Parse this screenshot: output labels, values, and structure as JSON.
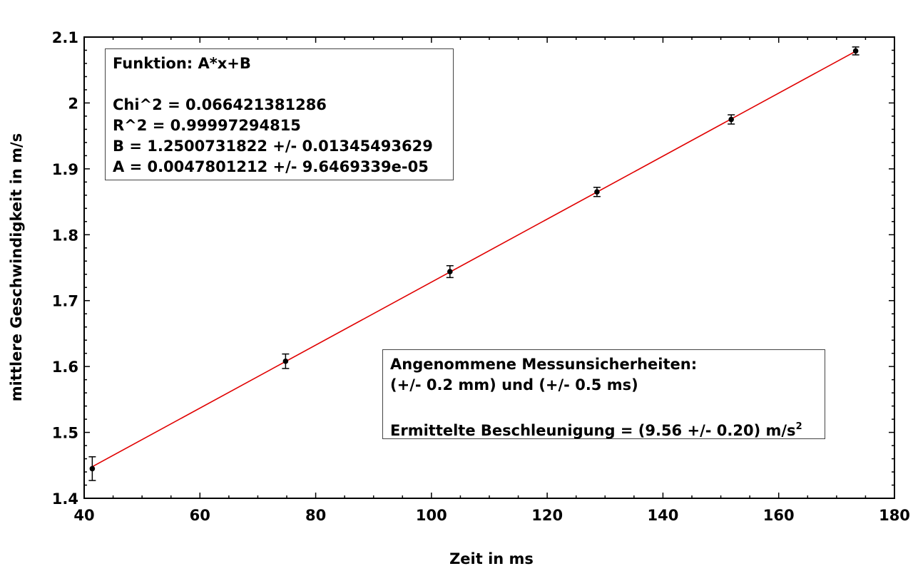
{
  "chart_data": {
    "type": "scatter",
    "xlabel": "Zeit in  ms",
    "ylabel": "mittlere Geschwindigkeit in  m/s",
    "xlim": [
      40,
      180
    ],
    "ylim": [
      1.4,
      2.1
    ],
    "x_ticks": [
      "40",
      "60",
      "80",
      "100",
      "120",
      "140",
      "160",
      "180"
    ],
    "y_ticks": [
      "1.4",
      "1.5",
      "1.6",
      "1.7",
      "1.8",
      "1.9",
      "2",
      "2.1"
    ],
    "grid": false,
    "points": [
      {
        "x": 41.4,
        "y": 1.445,
        "err": 0.018
      },
      {
        "x": 74.8,
        "y": 1.608,
        "err": 0.011
      },
      {
        "x": 103.2,
        "y": 1.744,
        "err": 0.009
      },
      {
        "x": 128.6,
        "y": 1.865,
        "err": 0.007
      },
      {
        "x": 151.8,
        "y": 1.975,
        "err": 0.007
      },
      {
        "x": 173.3,
        "y": 2.079,
        "err": 0.006
      }
    ],
    "fit": {
      "A": 0.0047801212,
      "B": 1.2500731822,
      "x_range": [
        41.4,
        173.3
      ],
      "color": "#e00000"
    },
    "point_color": "#000000"
  },
  "fit_box": {
    "title": "Funktion: A*x+B",
    "chi2": "Chi^2 = 0.066421381286",
    "r2": "R^2 = 0.99997294815",
    "b": "B = 1.2500731822 +/- 0.01345493629",
    "a": "A = 0.0047801212 +/- 9.6469339e-05"
  },
  "info_box": {
    "line1": "Angenommene Messunsicherheiten:",
    "line2": "(+/- 0.2 mm) und (+/- 0.5 ms)",
    "line3": "Ermittelte Beschleunigung = (9.56 +/- 0.20) m/s",
    "line3_sup": "2"
  }
}
